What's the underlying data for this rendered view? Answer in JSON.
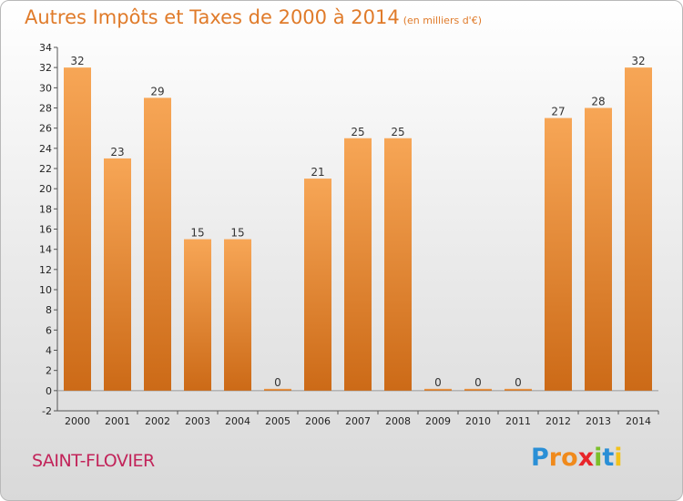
{
  "header": {
    "title": "Autres Impôts et Taxes de 2000 à 2014",
    "subtitle": "(en milliers d'€)"
  },
  "footer": {
    "city": "SAINT-FLOVIER",
    "logo": "Proxiti"
  },
  "colors": {
    "bar_top": "#f7a656",
    "bar_bottom": "#cc6a17",
    "title": "#e07b2a",
    "city": "#c2245a"
  },
  "chart_data": {
    "type": "bar",
    "title": "Autres Impôts et Taxes de 2000 à 2014",
    "xlabel": "",
    "ylabel": "",
    "categories": [
      "2000",
      "2001",
      "2002",
      "2003",
      "2004",
      "2005",
      "2006",
      "2007",
      "2008",
      "2009",
      "2010",
      "2011",
      "2012",
      "2013",
      "2014"
    ],
    "values": [
      32,
      23,
      29,
      15,
      15,
      0,
      21,
      25,
      25,
      0,
      0,
      0,
      27,
      28,
      32
    ],
    "ylim": [
      -2,
      34
    ],
    "yticks": [
      -2,
      0,
      2,
      4,
      6,
      8,
      10,
      12,
      14,
      16,
      18,
      20,
      22,
      24,
      26,
      28,
      30,
      32,
      34
    ],
    "grid": false,
    "legend": "none"
  }
}
